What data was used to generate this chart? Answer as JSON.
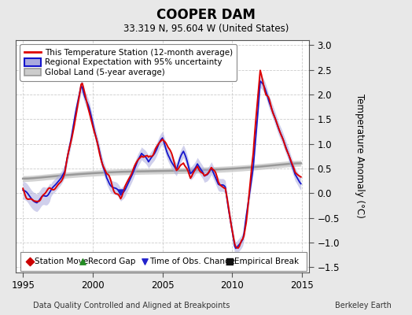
{
  "title": "COOPER DAM",
  "subtitle": "33.319 N, 95.604 W (United States)",
  "ylabel": "Temperature Anomaly (°C)",
  "xlabel_left": "Data Quality Controlled and Aligned at Breakpoints",
  "xlabel_right": "Berkeley Earth",
  "xlim": [
    1994.5,
    2015.5
  ],
  "ylim": [
    -1.6,
    3.1
  ],
  "yticks": [
    -1.5,
    -1.0,
    -0.5,
    0.0,
    0.5,
    1.0,
    1.5,
    2.0,
    2.5,
    3.0
  ],
  "xticks": [
    1995,
    2000,
    2005,
    2010,
    2015
  ],
  "bg_color": "#e8e8e8",
  "plot_bg_color": "#ffffff",
  "red_line_color": "#dd0000",
  "blue_line_color": "#1515cc",
  "blue_fill_color": "#aaaadd",
  "gray_line_color": "#999999",
  "gray_fill_color": "#cccccc",
  "legend_items": [
    "This Temperature Station (12-month average)",
    "Regional Expectation with 95% uncertainty",
    "Global Land (5-year average)"
  ],
  "marker_legend": [
    [
      "Station Move",
      "#cc0000",
      "D"
    ],
    [
      "Record Gap",
      "#228B22",
      "^"
    ],
    [
      "Time of Obs. Change",
      "#2222cc",
      "v"
    ],
    [
      "Empirical Break",
      "#111111",
      "s"
    ]
  ]
}
